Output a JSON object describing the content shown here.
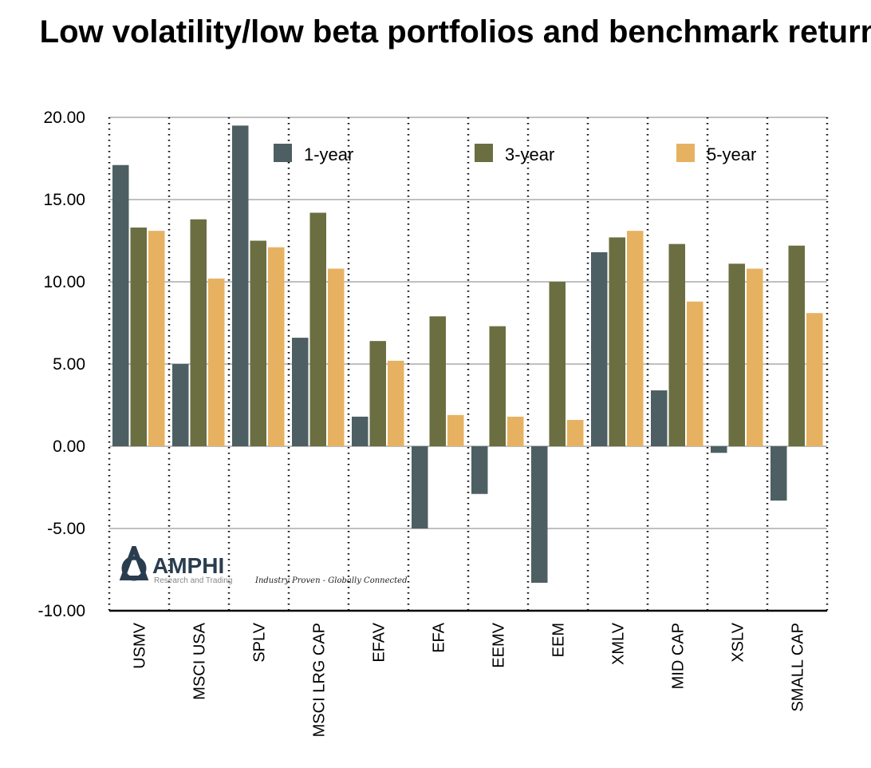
{
  "chart_data": {
    "type": "bar",
    "title": "Low volatility/low beta portfolios and benchmark returns",
    "xlabel": "",
    "ylabel": "",
    "ylim": [
      -10,
      20
    ],
    "yticks": [
      "20.00",
      "15.00",
      "10.00",
      "5.00",
      "0.00",
      "-5.00",
      "-10.00"
    ],
    "grid": true,
    "legend_position": "top",
    "categories": [
      "USMV",
      "MSCI USA",
      "SPLV",
      "MSCI LRG CAP",
      "EFAV",
      "EFA",
      "EEMV",
      "EEM",
      "XMLV",
      "MID CAP",
      "XSLV",
      "SMALL CAP"
    ],
    "series": [
      {
        "name": "1-year",
        "color": "#4d5f63",
        "values": [
          17.1,
          5.0,
          19.5,
          6.6,
          1.8,
          -5.0,
          -2.9,
          -8.3,
          11.8,
          3.4,
          -0.4,
          -3.3
        ]
      },
      {
        "name": "3-year",
        "color": "#6b6e41",
        "values": [
          13.3,
          13.8,
          12.5,
          14.2,
          6.4,
          7.9,
          7.3,
          10.0,
          12.7,
          12.3,
          11.1,
          12.2
        ]
      },
      {
        "name": "5-year",
        "color": "#e6b262",
        "values": [
          13.1,
          10.2,
          12.1,
          10.8,
          5.2,
          1.9,
          1.8,
          1.6,
          13.1,
          8.8,
          10.8,
          8.1
        ]
      }
    ]
  },
  "logo": {
    "name": "AMPHI",
    "subtitle": "Research and Trading",
    "tagline": "Industry Proven - Globally Connected"
  }
}
